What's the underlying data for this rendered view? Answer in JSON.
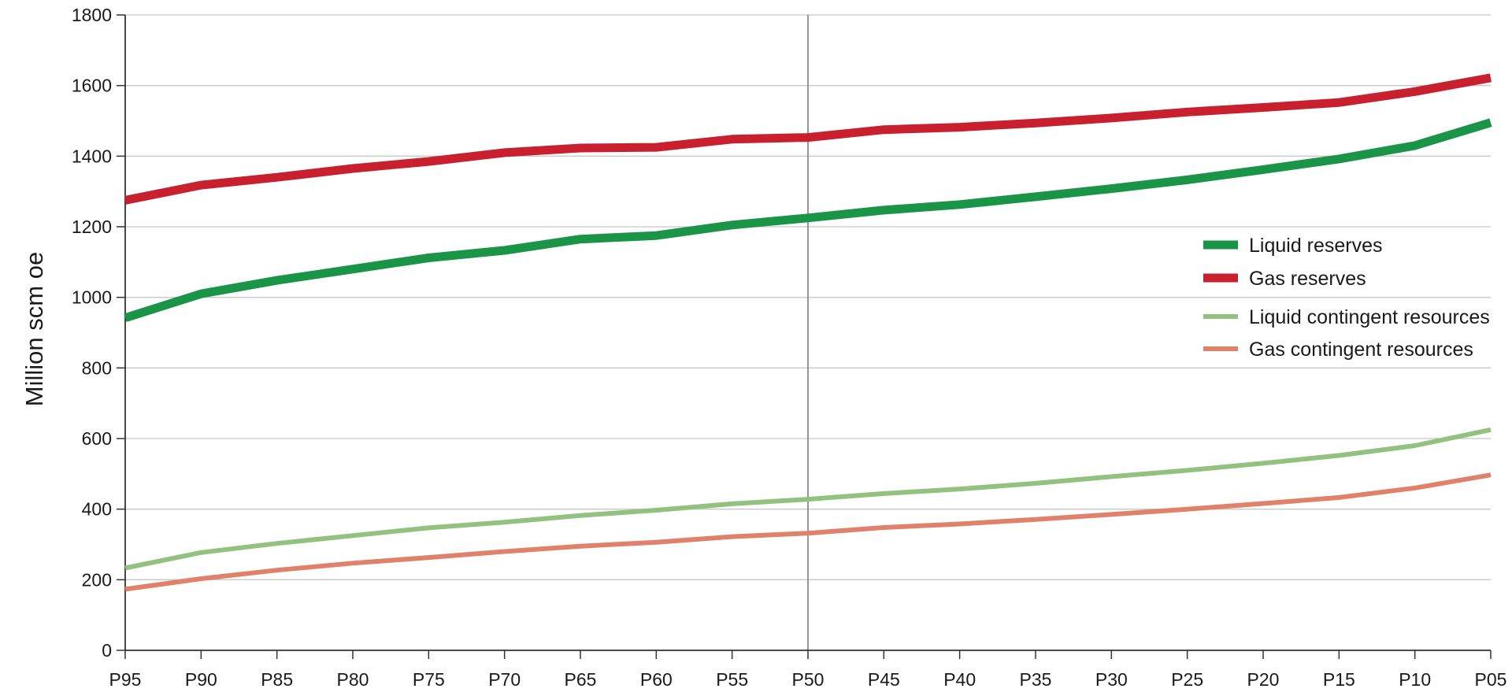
{
  "chart_data": {
    "type": "line",
    "xlabel": "",
    "ylabel": "Million  scm oe",
    "ylim": [
      0,
      1800
    ],
    "yticks": [
      0,
      200,
      400,
      600,
      800,
      1000,
      1200,
      1400,
      1600,
      1800
    ],
    "grid": "horizontal",
    "reference_line_category": "P50",
    "legend_position": "right",
    "categories": [
      "P95",
      "P90",
      "P85",
      "P80",
      "P75",
      "P70",
      "P65",
      "P60",
      "P55",
      "P50",
      "P45",
      "P40",
      "P35",
      "P30",
      "P25",
      "P20",
      "P15",
      "P10",
      "P05"
    ],
    "series": [
      {
        "name": "Liquid reserves",
        "color": "#1a9447",
        "width": 11,
        "values": [
          942,
          1010,
          1048,
          1080,
          1112,
          1133,
          1165,
          1175,
          1205,
          1225,
          1247,
          1263,
          1285,
          1308,
          1333,
          1362,
          1392,
          1430,
          1495
        ]
      },
      {
        "name": "Gas reserves",
        "color": "#c8202f",
        "width": 11,
        "values": [
          1275,
          1318,
          1340,
          1365,
          1385,
          1410,
          1423,
          1425,
          1448,
          1453,
          1475,
          1482,
          1494,
          1508,
          1525,
          1538,
          1552,
          1583,
          1622
        ]
      },
      {
        "name": "Liquid contingent resources",
        "color": "#92c27e",
        "width": 6,
        "values": [
          233,
          277,
          303,
          325,
          347,
          363,
          382,
          397,
          415,
          428,
          444,
          457,
          473,
          492,
          510,
          530,
          552,
          580,
          625
        ]
      },
      {
        "name": "Gas contingent resources",
        "color": "#e0826b",
        "width": 6,
        "values": [
          173,
          203,
          227,
          247,
          263,
          280,
          295,
          306,
          322,
          332,
          348,
          358,
          371,
          385,
          400,
          416,
          433,
          460,
          497
        ]
      }
    ]
  }
}
